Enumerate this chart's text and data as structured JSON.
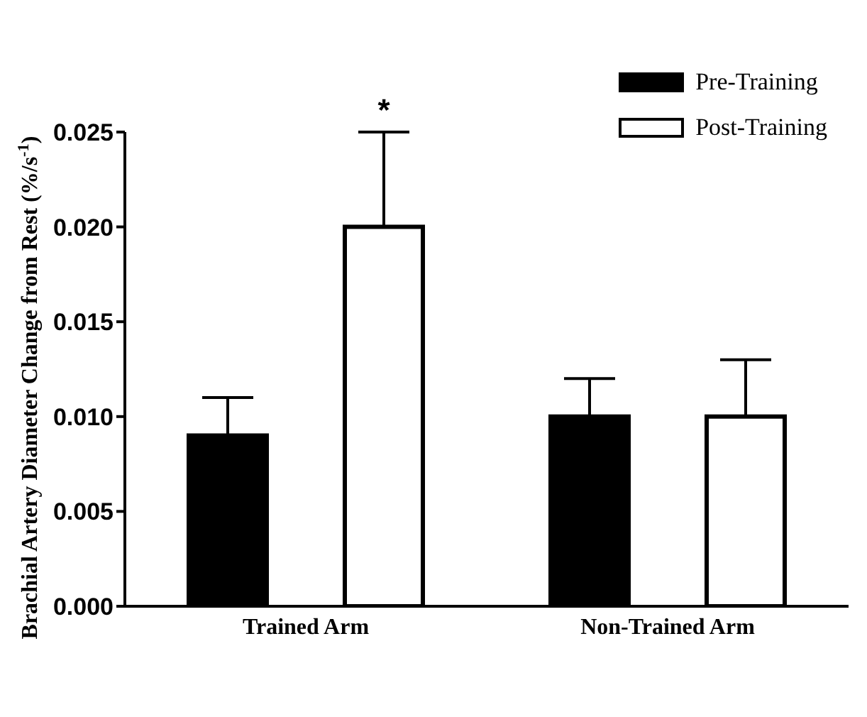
{
  "chart_data": {
    "type": "bar",
    "ylabel": "Brachial Artery Diameter Change from Rest (%/s$^{-1}$)",
    "categories": [
      "Trained Arm",
      "Non-Trained Arm"
    ],
    "series": [
      {
        "name": "Pre-Training",
        "color": "#000000",
        "values": [
          0.009,
          0.01
        ],
        "errors": [
          [
            0.009,
            0.011
          ],
          [
            0.01,
            0.012
          ]
        ]
      },
      {
        "name": "Post-Training",
        "color": "#ffffff",
        "values": [
          0.02,
          0.01
        ],
        "errors": [
          [
            0.02,
            0.025
          ],
          [
            0.01,
            0.013
          ]
        ]
      }
    ],
    "ylim": [
      0,
      0.025
    ],
    "yticks": [
      {
        "value": 0,
        "label": "0.000"
      },
      {
        "value": 0.005,
        "label": "0.005"
      },
      {
        "value": 0.01,
        "label": "0.010"
      },
      {
        "value": 0.015,
        "label": "0.015"
      },
      {
        "value": 0.02,
        "label": "0.020"
      },
      {
        "value": 0.025,
        "label": "0.025"
      }
    ],
    "annotations": [
      "*"
    ],
    "legend": "top right",
    "grid": false
  }
}
